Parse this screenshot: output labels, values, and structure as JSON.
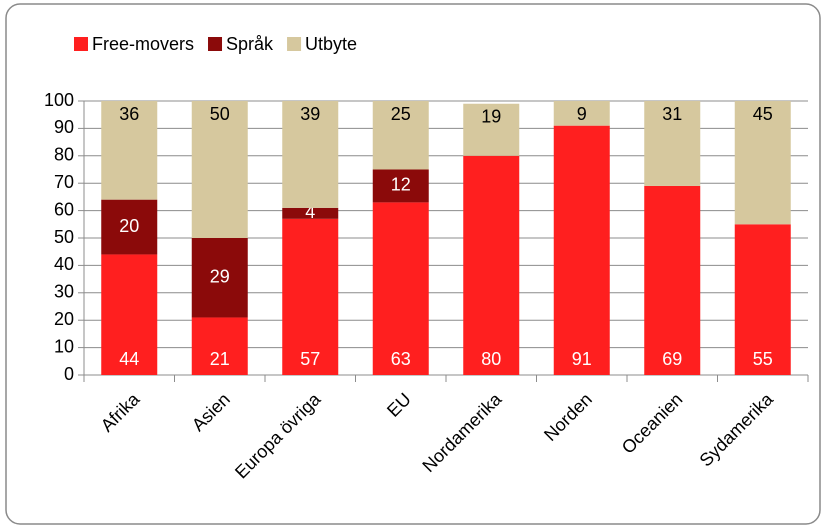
{
  "chart_data": {
    "type": "stacked_bar",
    "categories": [
      "Afrika",
      "Asien",
      "Europa övriga",
      "EU",
      "Nordamerika",
      "Norden",
      "Oceanien",
      "Sydamerika"
    ],
    "series": [
      {
        "name": "Free-movers",
        "color": "#ff1f1f",
        "values": [
          44,
          21,
          57,
          63,
          80,
          91,
          69,
          55
        ]
      },
      {
        "name": "Språk",
        "color": "#8b0a0a",
        "values": [
          20,
          29,
          4,
          12,
          null,
          null,
          null,
          null
        ]
      },
      {
        "name": "Utbyte",
        "color": "#d6c89e",
        "values": [
          36,
          50,
          39,
          25,
          19,
          9,
          31,
          45
        ]
      }
    ],
    "ylim": [
      0,
      100
    ],
    "yticks": [
      0,
      10,
      20,
      30,
      40,
      50,
      60,
      70,
      80,
      90,
      100
    ],
    "grid": true,
    "legend": "top"
  }
}
